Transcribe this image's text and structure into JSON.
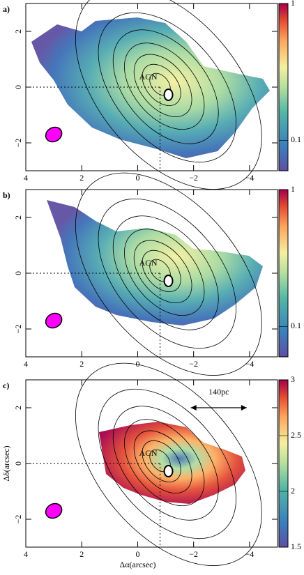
{
  "chart_data": [
    {
      "type": "heatmap",
      "panel_label": "a)",
      "annotation": "AGN",
      "xlim": [
        4,
        -5
      ],
      "ylim": [
        -3,
        3
      ],
      "xticks": [
        4,
        2,
        0,
        {
          "value": -2,
          "label": "−2"
        },
        {
          "value": -4,
          "label": "−4"
        }
      ],
      "yticks": [
        2,
        0,
        {
          "value": -2,
          "label": "−2"
        }
      ],
      "colorbar": {
        "clim": [
          0.06,
          1
        ],
        "log": true,
        "ticks": [
          1,
          0.1
        ]
      }
    },
    {
      "type": "heatmap",
      "panel_label": "b)",
      "annotation": "AGN",
      "xlim": [
        4,
        -5
      ],
      "ylim": [
        -3,
        3
      ],
      "xticks": [
        4,
        2,
        0,
        {
          "value": -2,
          "label": "−2"
        },
        {
          "value": -4,
          "label": "−4"
        }
      ],
      "yticks": [
        2,
        0,
        {
          "value": -2,
          "label": "−2"
        }
      ],
      "colorbar": {
        "clim": [
          0.06,
          1
        ],
        "log": true,
        "ticks": [
          1,
          0.1
        ]
      }
    },
    {
      "type": "heatmap",
      "panel_label": "c)",
      "annotation": "AGN",
      "scale_label": "140pc",
      "xlabel": "Δα(arcsec)",
      "ylabel": "Δδ(arcsec)",
      "xlim": [
        4,
        -5
      ],
      "ylim": [
        -3,
        3
      ],
      "xticks": [
        4,
        2,
        0,
        {
          "value": -2,
          "label": "−2"
        },
        {
          "value": -4,
          "label": "−4"
        }
      ],
      "yticks": [
        2,
        0,
        {
          "value": -2,
          "label": "−2"
        }
      ],
      "colorbar": {
        "clim": [
          1.5,
          3
        ],
        "log": false,
        "ticks": [
          3,
          2.5,
          2,
          1.5
        ]
      }
    }
  ]
}
